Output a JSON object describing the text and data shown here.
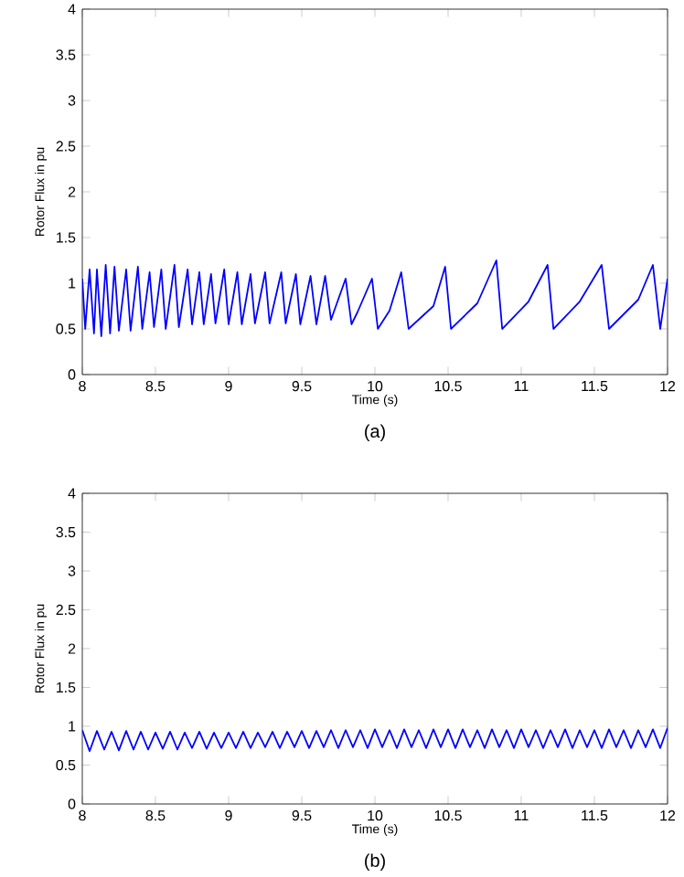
{
  "chart_data": [
    {
      "type": "line",
      "xlabel": "Time (s)",
      "ylabel": "Rotor Flux in pu",
      "annotations": [
        "(a)"
      ],
      "xlim": [
        8,
        12
      ],
      "ylim": [
        0,
        4
      ],
      "xticks": [
        8,
        8.5,
        9,
        9.5,
        10,
        10.5,
        11,
        11.5,
        12
      ],
      "yticks": [
        0,
        0.5,
        1,
        1.5,
        2,
        2.5,
        3,
        3.5,
        4
      ],
      "series": [
        {
          "color": "#0000ff",
          "x": [
            8.0,
            8.02,
            8.05,
            8.08,
            8.1,
            8.13,
            8.16,
            8.19,
            8.22,
            8.25,
            8.3,
            8.33,
            8.38,
            8.41,
            8.46,
            8.49,
            8.54,
            8.57,
            8.63,
            8.66,
            8.72,
            8.75,
            8.8,
            8.83,
            8.88,
            8.91,
            8.97,
            9.0,
            9.06,
            9.09,
            9.15,
            9.18,
            9.25,
            9.28,
            9.36,
            9.39,
            9.46,
            9.49,
            9.56,
            9.6,
            9.66,
            9.7,
            9.8,
            9.84,
            9.88,
            9.98,
            10.02,
            10.1,
            10.18,
            10.23,
            10.4,
            10.48,
            10.52,
            10.7,
            10.83,
            10.87,
            11.05,
            11.18,
            11.22,
            11.4,
            11.55,
            11.6,
            11.8,
            11.9,
            11.95,
            12.0
          ],
          "values": [
            1.05,
            0.5,
            1.15,
            0.45,
            1.15,
            0.42,
            1.2,
            0.45,
            1.18,
            0.48,
            1.15,
            0.48,
            1.18,
            0.5,
            1.12,
            0.52,
            1.15,
            0.5,
            1.2,
            0.52,
            1.15,
            0.55,
            1.12,
            0.55,
            1.1,
            0.56,
            1.15,
            0.55,
            1.12,
            0.55,
            1.1,
            0.56,
            1.12,
            0.56,
            1.12,
            0.56,
            1.1,
            0.55,
            1.08,
            0.55,
            1.08,
            0.6,
            1.05,
            0.55,
            0.68,
            1.05,
            0.5,
            0.7,
            1.12,
            0.5,
            0.75,
            1.18,
            0.5,
            0.78,
            1.25,
            0.5,
            0.8,
            1.2,
            0.5,
            0.8,
            1.2,
            0.5,
            0.82,
            1.2,
            0.5,
            1.05
          ]
        }
      ]
    },
    {
      "type": "line",
      "xlabel": "Time (s)",
      "ylabel": "Rotor Flux in pu",
      "annotations": [
        "(b)"
      ],
      "xlim": [
        8,
        12
      ],
      "ylim": [
        0,
        4
      ],
      "xticks": [
        8,
        8.5,
        9,
        9.5,
        10,
        10.5,
        11,
        11.5,
        12
      ],
      "yticks": [
        0,
        0.5,
        1,
        1.5,
        2,
        2.5,
        3,
        3.5,
        4
      ],
      "series": [
        {
          "color": "#0000ff",
          "x": [
            8.0,
            8.05,
            8.1,
            8.15,
            8.2,
            8.25,
            8.3,
            8.35,
            8.4,
            8.45,
            8.5,
            8.55,
            8.6,
            8.65,
            8.7,
            8.75,
            8.8,
            8.85,
            8.9,
            8.95,
            9.0,
            9.05,
            9.1,
            9.15,
            9.2,
            9.25,
            9.3,
            9.35,
            9.4,
            9.45,
            9.5,
            9.55,
            9.6,
            9.65,
            9.7,
            9.75,
            9.8,
            9.85,
            9.9,
            9.95,
            10.0,
            10.05,
            10.1,
            10.15,
            10.2,
            10.25,
            10.3,
            10.35,
            10.4,
            10.45,
            10.5,
            10.55,
            10.6,
            10.65,
            10.7,
            10.75,
            10.8,
            10.85,
            10.9,
            10.95,
            11.0,
            11.05,
            11.1,
            11.15,
            11.2,
            11.25,
            11.3,
            11.35,
            11.4,
            11.45,
            11.5,
            11.55,
            11.6,
            11.65,
            11.7,
            11.75,
            11.8,
            11.85,
            11.9,
            11.95,
            12.0
          ],
          "values": [
            0.95,
            0.68,
            0.94,
            0.7,
            0.93,
            0.69,
            0.94,
            0.7,
            0.93,
            0.7,
            0.92,
            0.71,
            0.93,
            0.7,
            0.92,
            0.72,
            0.93,
            0.71,
            0.92,
            0.72,
            0.92,
            0.72,
            0.93,
            0.72,
            0.92,
            0.73,
            0.93,
            0.72,
            0.93,
            0.73,
            0.94,
            0.72,
            0.94,
            0.73,
            0.95,
            0.72,
            0.95,
            0.73,
            0.95,
            0.72,
            0.96,
            0.73,
            0.95,
            0.72,
            0.96,
            0.73,
            0.95,
            0.72,
            0.96,
            0.73,
            0.96,
            0.72,
            0.96,
            0.73,
            0.95,
            0.72,
            0.96,
            0.73,
            0.95,
            0.72,
            0.96,
            0.73,
            0.95,
            0.72,
            0.95,
            0.73,
            0.96,
            0.72,
            0.95,
            0.73,
            0.95,
            0.72,
            0.96,
            0.73,
            0.95,
            0.72,
            0.95,
            0.73,
            0.96,
            0.72,
            0.98
          ]
        }
      ]
    }
  ]
}
